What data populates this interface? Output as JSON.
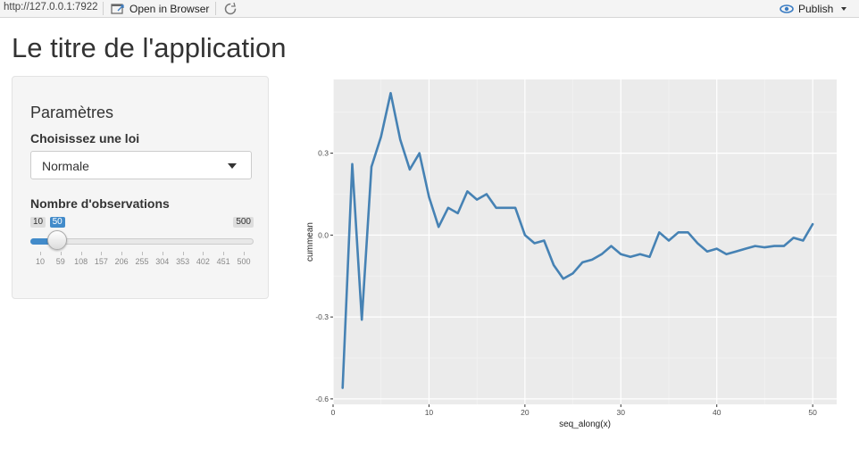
{
  "toolbar": {
    "url": "http://127.0.0.1:7922",
    "open_in_browser": "Open in Browser",
    "publish": "Publish"
  },
  "app": {
    "title": "Le titre de l'application",
    "panel_title": "Paramètres",
    "dist_label": "Choisissez une loi",
    "dist_value": "Normale",
    "obs_label": "Nombre d'observations",
    "slider": {
      "min": 10,
      "max": 500,
      "value": 50,
      "min_label": "10",
      "max_label": "500",
      "value_label": "50",
      "ticks": [
        "10",
        "59",
        "108",
        "157",
        "206",
        "255",
        "304",
        "353",
        "402",
        "451",
        "500"
      ]
    }
  },
  "colors": {
    "line": "#4682b4",
    "panel_bg": "#ebebeb",
    "accent": "#428bca"
  },
  "chart_data": {
    "type": "line",
    "xlabel": "seq_along(x)",
    "ylabel": "cummean",
    "xlim": [
      0,
      52.5
    ],
    "ylim": [
      -0.62,
      0.57
    ],
    "xticks": [
      0,
      10,
      20,
      30,
      40,
      50
    ],
    "xtick_labels": [
      "0",
      "10",
      "20",
      "30",
      "40",
      "50"
    ],
    "yticks": [
      -0.6,
      -0.3,
      0.0,
      0.3
    ],
    "ytick_labels": [
      "-0.6",
      "-0.3",
      "0.0",
      "0.3"
    ],
    "grid": true,
    "x": [
      1,
      2,
      3,
      4,
      5,
      6,
      7,
      8,
      9,
      10,
      11,
      12,
      13,
      14,
      15,
      16,
      17,
      18,
      19,
      20,
      21,
      22,
      23,
      24,
      25,
      26,
      27,
      28,
      29,
      30,
      31,
      32,
      33,
      34,
      35,
      36,
      37,
      38,
      39,
      40,
      41,
      42,
      43,
      44,
      45,
      46,
      47,
      48,
      49,
      50
    ],
    "y": [
      -0.56,
      0.26,
      -0.31,
      0.25,
      0.36,
      0.52,
      0.35,
      0.24,
      0.3,
      0.14,
      0.03,
      0.1,
      0.08,
      0.16,
      0.13,
      0.15,
      0.1,
      0.1,
      0.1,
      0.0,
      -0.03,
      -0.02,
      -0.11,
      -0.16,
      -0.14,
      -0.1,
      -0.09,
      -0.07,
      -0.04,
      -0.07,
      -0.08,
      -0.07,
      -0.08,
      0.01,
      -0.02,
      0.01,
      0.01,
      -0.03,
      -0.06,
      -0.05,
      -0.07,
      -0.06,
      -0.05,
      -0.04,
      -0.045,
      -0.04,
      -0.04,
      -0.01,
      -0.02,
      0.04
    ]
  }
}
